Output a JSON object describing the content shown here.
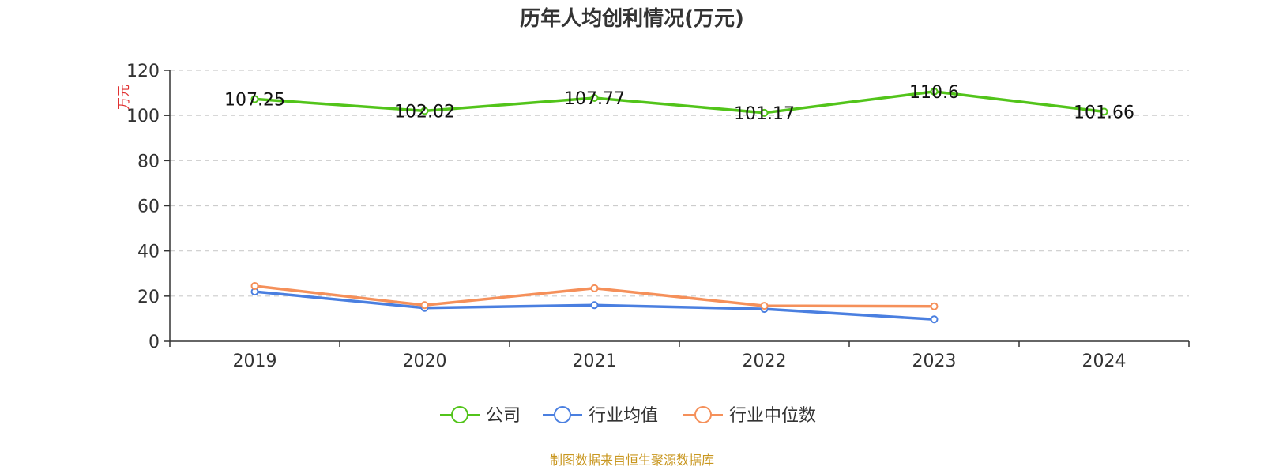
{
  "chart_data": {
    "type": "line",
    "title": "历年人均创利情况(万元)",
    "ylabel": "万元",
    "xlabel": "",
    "categories": [
      "2019",
      "2020",
      "2021",
      "2022",
      "2023",
      "2024"
    ],
    "ylim": [
      0,
      120
    ],
    "yticks": [
      0,
      20,
      40,
      60,
      80,
      100,
      120
    ],
    "grid": true,
    "legend_position": "bottom",
    "series": [
      {
        "name": "公司",
        "color": "#52c41a",
        "values": [
          107.25,
          102.02,
          107.77,
          101.17,
          110.6,
          101.66
        ],
        "labels": [
          "107.25",
          "102.02",
          "107.77",
          "101.17",
          "110.6",
          "101.66"
        ]
      },
      {
        "name": "行业均值",
        "color": "#4a7fe0",
        "values": [
          22.0,
          14.8,
          16.0,
          14.3,
          9.7,
          null
        ]
      },
      {
        "name": "行业中位数",
        "color": "#f5905a",
        "values": [
          24.5,
          16.0,
          23.5,
          15.7,
          15.5,
          null
        ]
      }
    ]
  },
  "source_note": "制图数据来自恒生聚源数据库"
}
